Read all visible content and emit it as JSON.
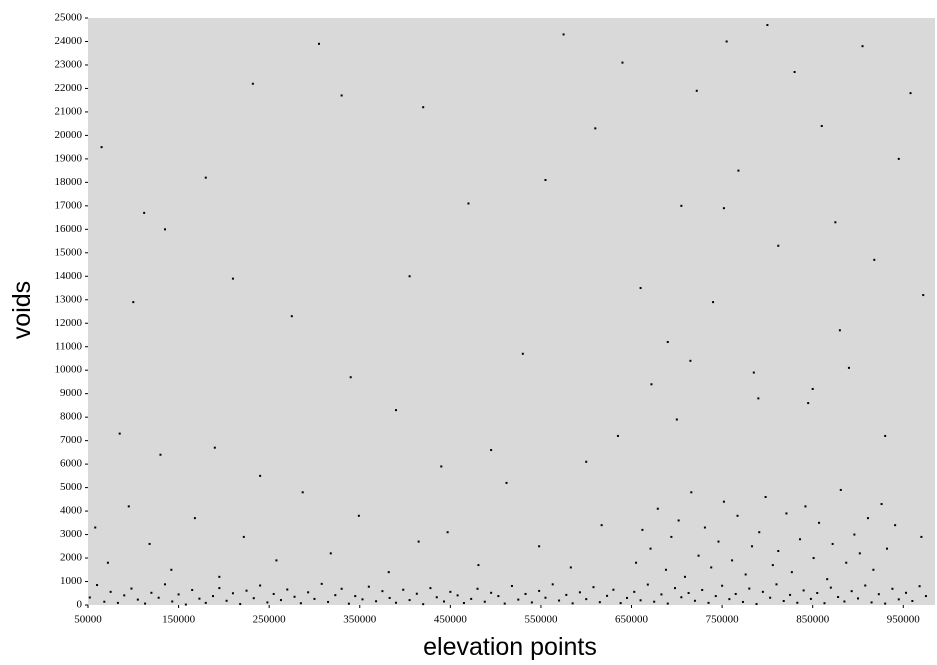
{
  "chart_data": {
    "type": "scatter",
    "x_label": "elevation points",
    "y_label": "voids",
    "xlim": [
      50000,
      985000
    ],
    "ylim": [
      0,
      25000
    ],
    "xticks": [
      50000,
      150000,
      250000,
      350000,
      450000,
      550000,
      650000,
      750000,
      850000,
      950000
    ],
    "yticks": [
      0,
      1000,
      2000,
      3000,
      4000,
      5000,
      6000,
      7000,
      8000,
      9000,
      10000,
      11000,
      12000,
      13000,
      14000,
      15000,
      16000,
      17000,
      18000,
      19000,
      20000,
      21000,
      22000,
      23000,
      24000,
      25000
    ],
    "color": "#000000",
    "background": "#d9d9d9",
    "x": [
      52000,
      60000,
      68000,
      75000,
      83000,
      90000,
      98000,
      105000,
      113000,
      120000,
      128000,
      135000,
      143000,
      150000,
      158000,
      165000,
      173000,
      180000,
      188000,
      195000,
      203000,
      210000,
      218000,
      225000,
      233000,
      240000,
      248000,
      255000,
      263000,
      270000,
      278000,
      285000,
      293000,
      300000,
      308000,
      315000,
      323000,
      330000,
      338000,
      345000,
      353000,
      360000,
      368000,
      375000,
      383000,
      390000,
      398000,
      405000,
      413000,
      420000,
      428000,
      435000,
      443000,
      450000,
      458000,
      465000,
      473000,
      480000,
      488000,
      495000,
      503000,
      510000,
      518000,
      525000,
      533000,
      540000,
      548000,
      555000,
      563000,
      570000,
      578000,
      585000,
      593000,
      600000,
      608000,
      615000,
      623000,
      630000,
      638000,
      645000,
      653000,
      660000,
      668000,
      675000,
      683000,
      690000,
      698000,
      705000,
      713000,
      720000,
      728000,
      735000,
      743000,
      750000,
      758000,
      765000,
      773000,
      780000,
      788000,
      795000,
      803000,
      810000,
      818000,
      825000,
      833000,
      840000,
      848000,
      855000,
      863000,
      870000,
      878000,
      885000,
      893000,
      900000,
      908000,
      915000,
      923000,
      930000,
      938000,
      945000,
      953000,
      960000,
      968000,
      975000,
      655000,
      662000,
      671000,
      679000,
      688000,
      694000,
      702000,
      709000,
      716000,
      724000,
      731000,
      738000,
      746000,
      752000,
      761000,
      767000,
      776000,
      783000,
      791000,
      798000,
      806000,
      812000,
      821000,
      827000,
      836000,
      842000,
      851000,
      857000,
      866000,
      872000,
      881000,
      887000,
      896000,
      902000,
      911000,
      917000,
      926000,
      932000,
      941000,
      970000,
      58000,
      72000,
      95000,
      118000,
      142000,
      168000,
      195000,
      222000,
      258000,
      287000,
      318000,
      349000,
      382000,
      415000,
      447000,
      481000,
      512000,
      548000,
      583000,
      617000,
      65000,
      100000,
      112000,
      135000,
      180000,
      210000,
      232000,
      305000,
      330000,
      405000,
      420000,
      470000,
      555000,
      575000,
      610000,
      640000,
      660000,
      690000,
      705000,
      722000,
      740000,
      755000,
      768000,
      785000,
      800000,
      812000,
      830000,
      845000,
      860000,
      875000,
      890000,
      905000,
      918000,
      930000,
      945000,
      958000,
      972000,
      752000,
      880000,
      700000,
      85000,
      130000,
      190000,
      240000,
      275000,
      340000,
      390000,
      440000,
      495000,
      530000,
      600000,
      635000,
      672000,
      715000,
      790000,
      850000
    ],
    "values": [
      320,
      850,
      140,
      560,
      90,
      410,
      700,
      230,
      60,
      520,
      310,
      880,
      150,
      450,
      20,
      640,
      270,
      90,
      380,
      720,
      180,
      500,
      40,
      610,
      290,
      830,
      110,
      470,
      210,
      660,
      350,
      75,
      540,
      260,
      900,
      130,
      420,
      690,
      55,
      380,
      240,
      780,
      160,
      590,
      300,
      95,
      650,
      210,
      480,
      35,
      720,
      330,
      150,
      560,
      410,
      85,
      260,
      690,
      140,
      520,
      380,
      60,
      810,
      230,
      470,
      110,
      600,
      310,
      880,
      190,
      430,
      70,
      540,
      250,
      760,
      120,
      390,
      650,
      80,
      300,
      560,
      200,
      870,
      140,
      450,
      60,
      720,
      330,
      510,
      180,
      640,
      90,
      380,
      820,
      250,
      470,
      130,
      700,
      40,
      560,
      310,
      880,
      170,
      430,
      95,
      620,
      260,
      510,
      75,
      740,
      340,
      150,
      590,
      280,
      830,
      110,
      460,
      60,
      690,
      240,
      520,
      170,
      800,
      380,
      1800,
      3200,
      2400,
      4100,
      1500,
      2900,
      3600,
      1200,
      4800,
      2100,
      3300,
      1600,
      2700,
      4400,
      1900,
      3800,
      1300,
      2500,
      3100,
      4600,
      1700,
      2300,
      3900,
      1400,
      2800,
      4200,
      2000,
      3500,
      1100,
      2600,
      4900,
      1800,
      3000,
      2200,
      3700,
      1500,
      4300,
      2400,
      3400,
      2900,
      3300,
      1800,
      4200,
      2600,
      1500,
      3700,
      1200,
      2900,
      1900,
      4800,
      2200,
      3800,
      1400,
      2700,
      3100,
      1700,
      5200,
      2500,
      1600,
      3400,
      19500,
      12900,
      16700,
      16000,
      18200,
      13900,
      22200,
      23900,
      21700,
      14000,
      21200,
      17100,
      18100,
      24300,
      20300,
      23100,
      13500,
      11200,
      17000,
      21900,
      12900,
      24000,
      18500,
      9900,
      24700,
      15300,
      22700,
      8600,
      20400,
      16300,
      10100,
      23800,
      14700,
      7200,
      19000,
      21800,
      13200,
      16900,
      11700,
      7900,
      7300,
      6400,
      6700,
      5500,
      12300,
      9700,
      8300,
      5900,
      6600,
      10700,
      6100,
      7200,
      9400,
      10400,
      8800,
      9200
    ]
  }
}
